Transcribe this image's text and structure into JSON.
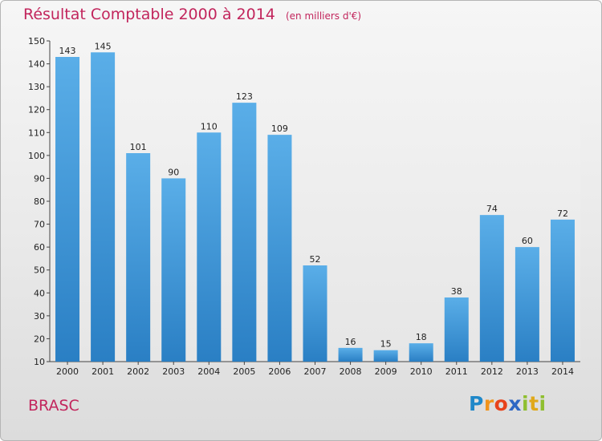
{
  "header": {
    "title": "Résultat Comptable 2000 à 2014",
    "unit": "(en milliers d'€)"
  },
  "footer": {
    "place": "BRASC",
    "logo": {
      "p": "P",
      "r": "r",
      "o": "o",
      "x": "x",
      "i": "i",
      "t": "t",
      "i2": "i"
    }
  },
  "colors": {
    "title": "#c2255c",
    "bar_top": "#5aaee8",
    "bar_bottom": "#2a7fc4"
  },
  "chart_data": {
    "type": "bar",
    "categories": [
      "2000",
      "2001",
      "2002",
      "2003",
      "2004",
      "2005",
      "2006",
      "2007",
      "2008",
      "2009",
      "2010",
      "2011",
      "2012",
      "2013",
      "2014"
    ],
    "values": [
      143,
      145,
      101,
      90,
      110,
      123,
      109,
      52,
      16,
      15,
      18,
      38,
      74,
      60,
      72
    ],
    "title": "Résultat Comptable 2000 à 2014",
    "xlabel": "",
    "ylabel": "",
    "ylim": [
      10,
      150
    ],
    "yticks": [
      10,
      20,
      30,
      40,
      50,
      60,
      70,
      80,
      90,
      100,
      110,
      120,
      130,
      140,
      150
    ],
    "grid": false,
    "legend": "none"
  }
}
